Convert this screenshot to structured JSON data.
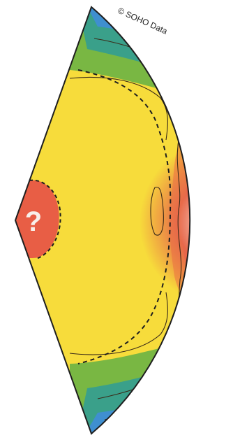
{
  "credit": "© SOHO Data",
  "core_marker": "?",
  "colors": {
    "background": "#ffffff",
    "outline": "#1e1e1e",
    "contour": "#3a2a18",
    "zone_violet": "#6d63a8",
    "zone_blue": "#3f8fd0",
    "zone_teal": "#3aa08a",
    "zone_green": "#79b743",
    "zone_yellow_green": "#c9d23d",
    "zone_yellow": "#f7dc3b",
    "zone_orange": "#f2a33c",
    "zone_red": "#e7674a",
    "zone_pale": "#fbe7df",
    "core_red": "#e85e45"
  }
}
